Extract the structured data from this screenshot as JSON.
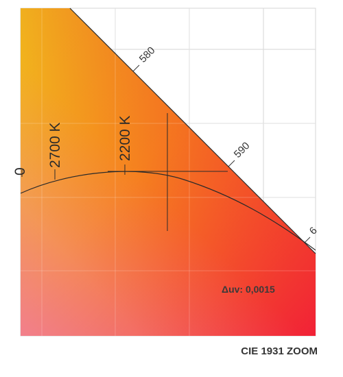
{
  "figure": {
    "caption": "CIE 1931 ZOOM",
    "duv_text": "Δuv: 0,0015",
    "gradient_colors": {
      "top_left": "#f0e21a",
      "mid": "#f7901c",
      "right": "#f4352a",
      "bottom_left": "#f06a8c",
      "bottom_right": "#f21e3c"
    },
    "spectral_locus": {
      "wavelength_ticks": [
        {
          "label": "580"
        },
        {
          "label": "590"
        },
        {
          "label": "6"
        }
      ]
    },
    "planckian_locus": {
      "cct_ticks": [
        {
          "label": "2700 K"
        },
        {
          "label": "2200 K"
        }
      ],
      "edge_tick_fragment": "0"
    },
    "crosshair": {
      "visible": true
    }
  }
}
